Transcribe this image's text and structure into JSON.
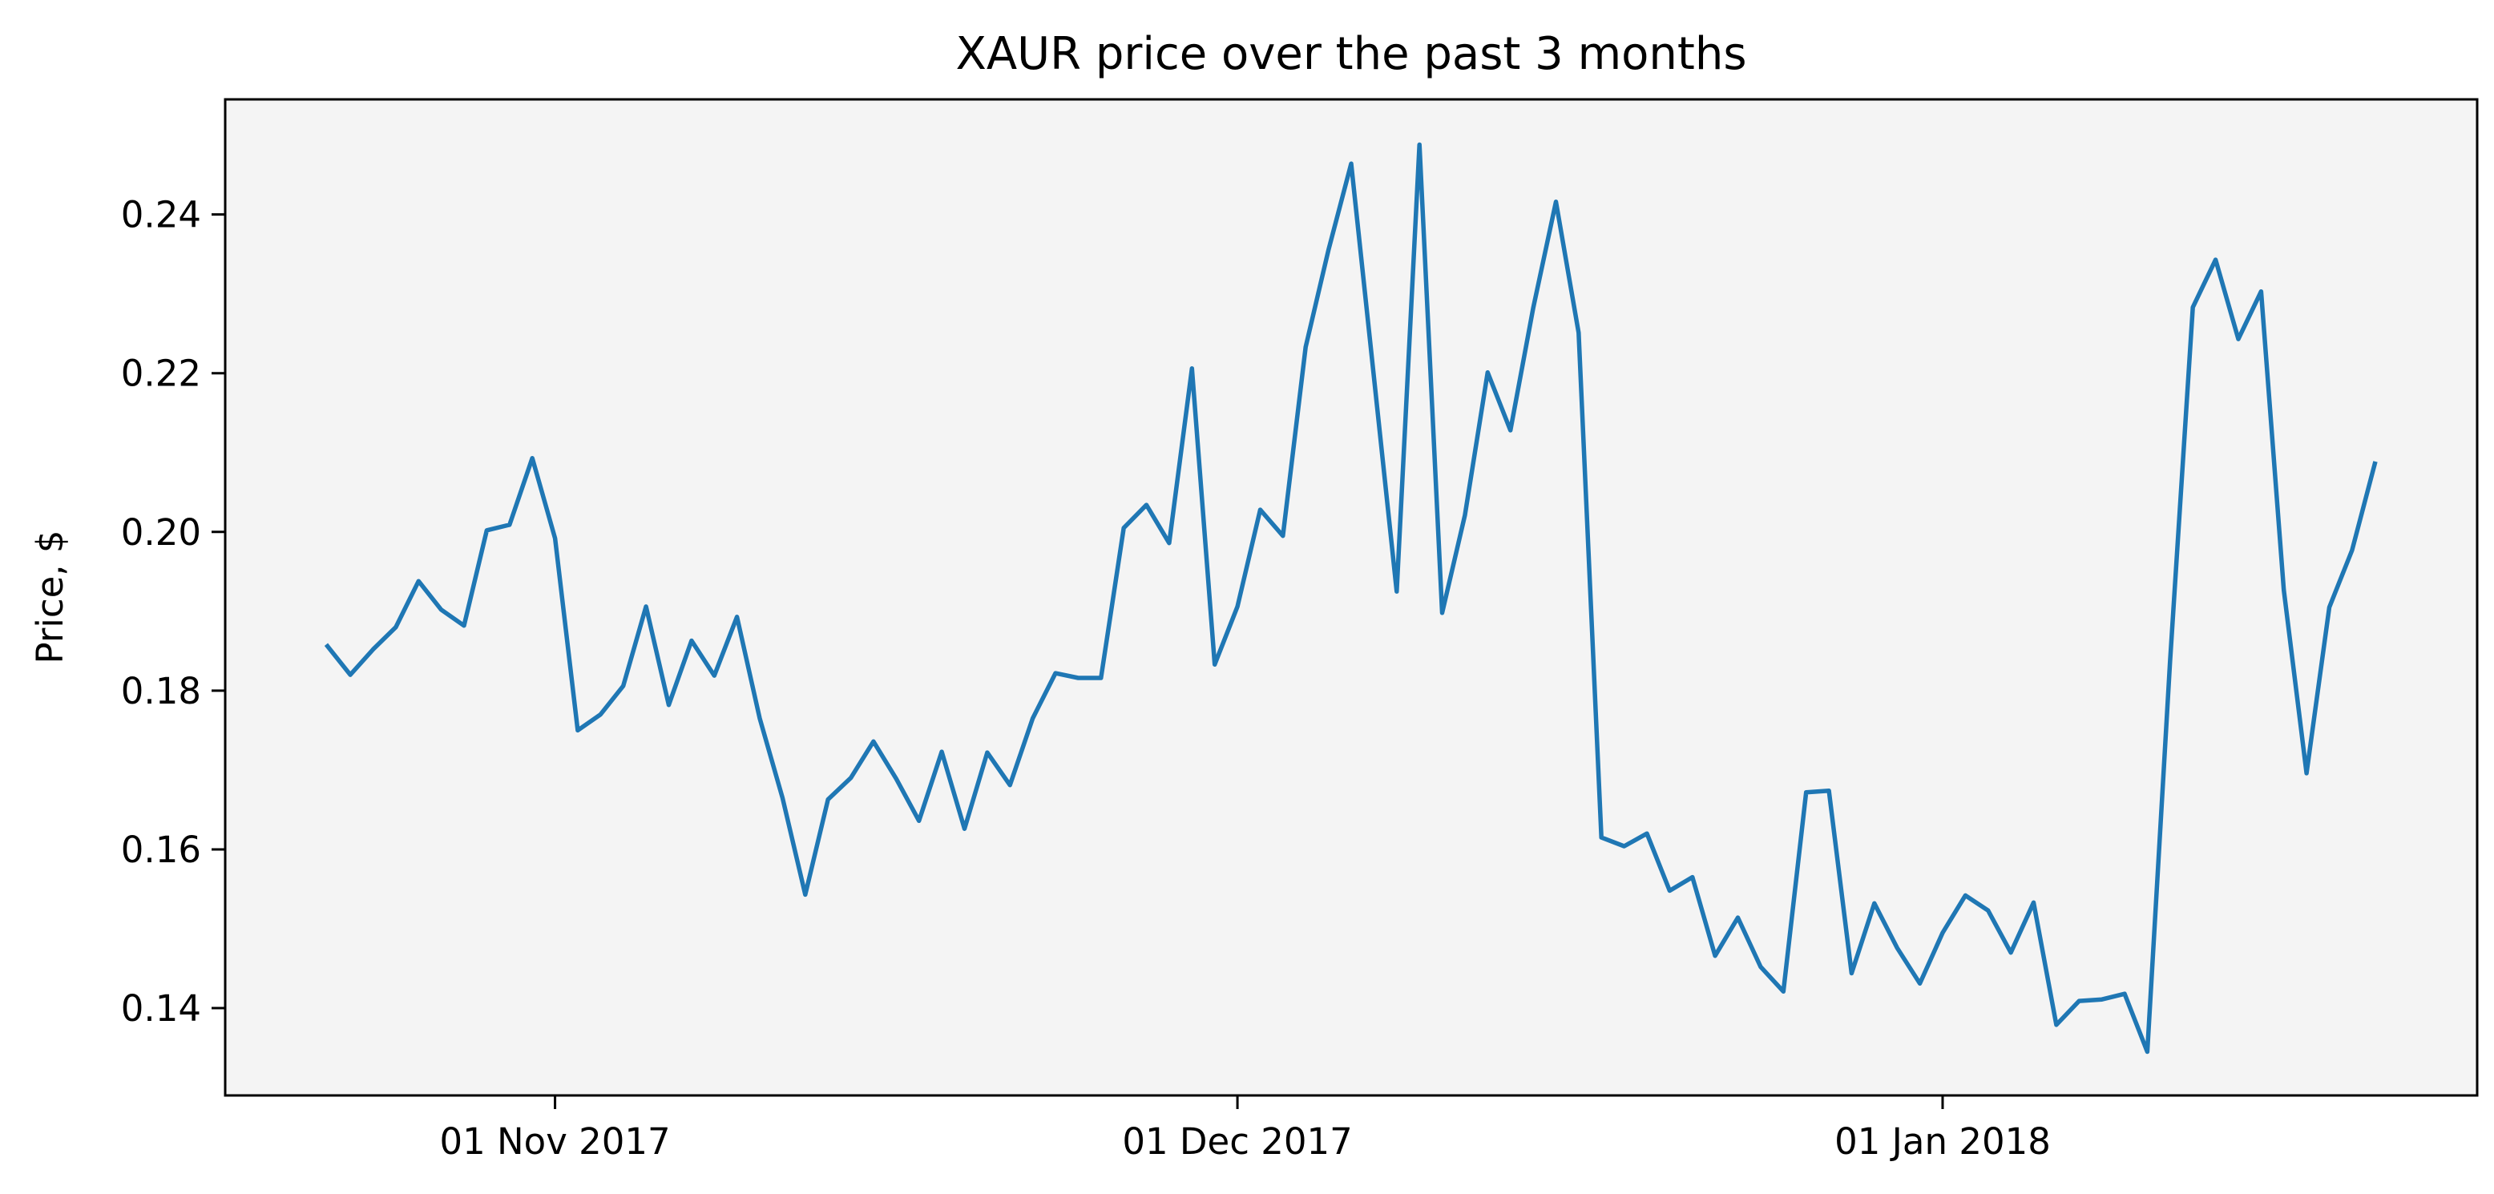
{
  "chart_data": {
    "type": "line",
    "title": "XAUR price over the past 3 months",
    "xlabel": "",
    "ylabel": "Price, $",
    "ylim": [
      0.129,
      0.2545
    ],
    "xlim": [
      "2017-10-17T12:00",
      "2018-01-24T12:00"
    ],
    "grid": false,
    "colors": {
      "line": "#1f77b4",
      "plot_bg": "#f4f4f4"
    },
    "x_ticks": [
      {
        "date": "2017-11-01",
        "label": "01 Nov 2017"
      },
      {
        "date": "2017-12-01",
        "label": "01 Dec 2017"
      },
      {
        "date": "2018-01-01",
        "label": "01 Jan 2018"
      }
    ],
    "y_ticks": [
      {
        "value": 0.14,
        "label": "0.14"
      },
      {
        "value": 0.16,
        "label": "0.16"
      },
      {
        "value": 0.18,
        "label": "0.18"
      },
      {
        "value": 0.2,
        "label": "0.20"
      },
      {
        "value": 0.22,
        "label": "0.22"
      },
      {
        "value": 0.24,
        "label": "0.24"
      }
    ],
    "series": [
      {
        "start_date": "2017-10-22",
        "interval_days": 1,
        "values": [
          0.1856,
          0.182,
          0.1852,
          0.188,
          0.1938,
          0.1902,
          0.1882,
          0.2002,
          0.2009,
          0.2093,
          0.1992,
          0.175,
          0.177,
          0.1806,
          0.1906,
          0.1782,
          0.1863,
          0.1819,
          0.1893,
          0.1765,
          0.1665,
          0.1543,
          0.1663,
          0.169,
          0.1736,
          0.1689,
          0.1636,
          0.1723,
          0.1626,
          0.1722,
          0.1681,
          0.1765,
          0.1822,
          0.1816,
          0.1816,
          0.2005,
          0.2034,
          0.1986,
          0.2206,
          0.1833,
          0.1906,
          0.2028,
          0.1995,
          0.2233,
          0.2355,
          0.2464,
          0.2195,
          0.1925,
          0.2488,
          0.1898,
          0.2021,
          0.2201,
          0.2128,
          0.2282,
          0.2416,
          0.2251,
          0.1615,
          0.1604,
          0.162,
          0.1548,
          0.1565,
          0.1466,
          0.1514,
          0.1452,
          0.1421,
          0.1672,
          0.1674,
          0.1444,
          0.1532,
          0.1476,
          0.1431,
          0.1495,
          0.1542,
          0.1523,
          0.147,
          0.1533,
          0.1379,
          0.1409,
          0.1411,
          0.1418,
          0.1345,
          0.1837,
          0.2283,
          0.2343,
          0.2243,
          0.2303,
          0.1927,
          0.1696,
          0.1905,
          0.1977,
          0.2086
        ]
      }
    ]
  }
}
